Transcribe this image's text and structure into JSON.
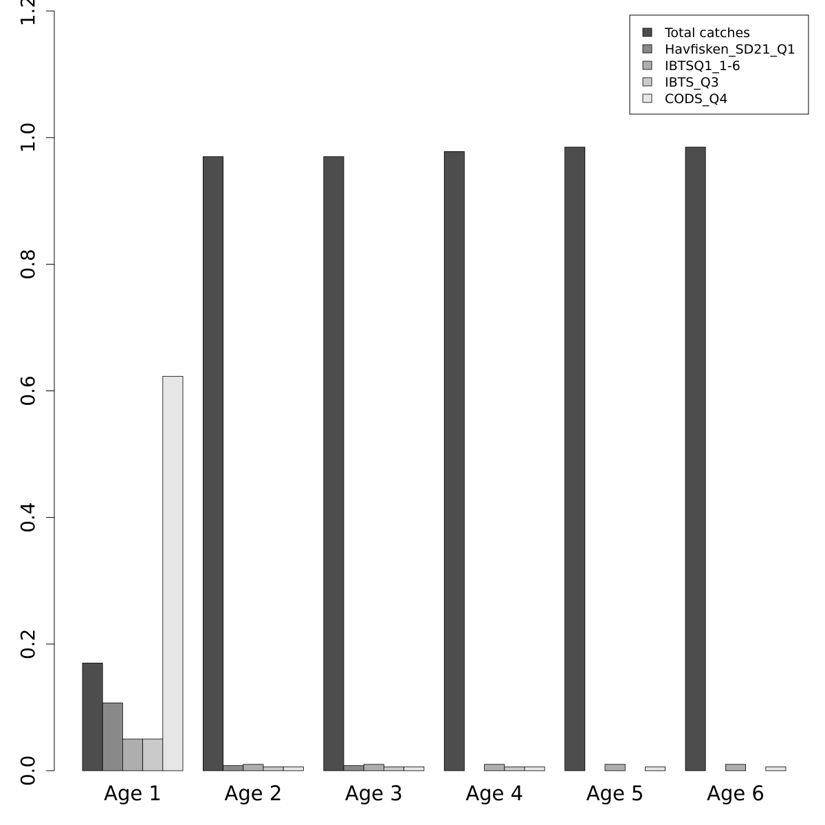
{
  "chart_data": {
    "type": "bar",
    "title": "",
    "xlabel": "",
    "ylabel": "",
    "ylim": [
      0,
      1.2
    ],
    "yticks": [
      "0.0",
      "0.2",
      "0.4",
      "0.6",
      "0.8",
      "1.0",
      "1.2"
    ],
    "grid": false,
    "legend_position": "top-right",
    "categories": [
      "Age 1",
      "Age 2",
      "Age 3",
      "Age 4",
      "Age 5",
      "Age 6"
    ],
    "series": [
      {
        "name": "Total catches",
        "color": "#4d4d4d",
        "values": [
          0.17,
          0.97,
          0.97,
          0.978,
          0.985,
          0.985
        ]
      },
      {
        "name": "Havfisken_SD21_Q1",
        "color": "#898989",
        "values": [
          0.107,
          0.008,
          0.008,
          0,
          0,
          0
        ]
      },
      {
        "name": "IBTSQ1_1-6",
        "color": "#aeaeae",
        "values": [
          0.05,
          0.01,
          0.01,
          0.01,
          0.01,
          0.01
        ]
      },
      {
        "name": "IBTS_Q3",
        "color": "#cacaca",
        "values": [
          0.05,
          0.006,
          0.006,
          0.006,
          0,
          0
        ]
      },
      {
        "name": "CODS_Q4",
        "color": "#e6e6e6",
        "values": [
          0.623,
          0.006,
          0.006,
          0.006,
          0.006,
          0.006
        ]
      }
    ]
  }
}
